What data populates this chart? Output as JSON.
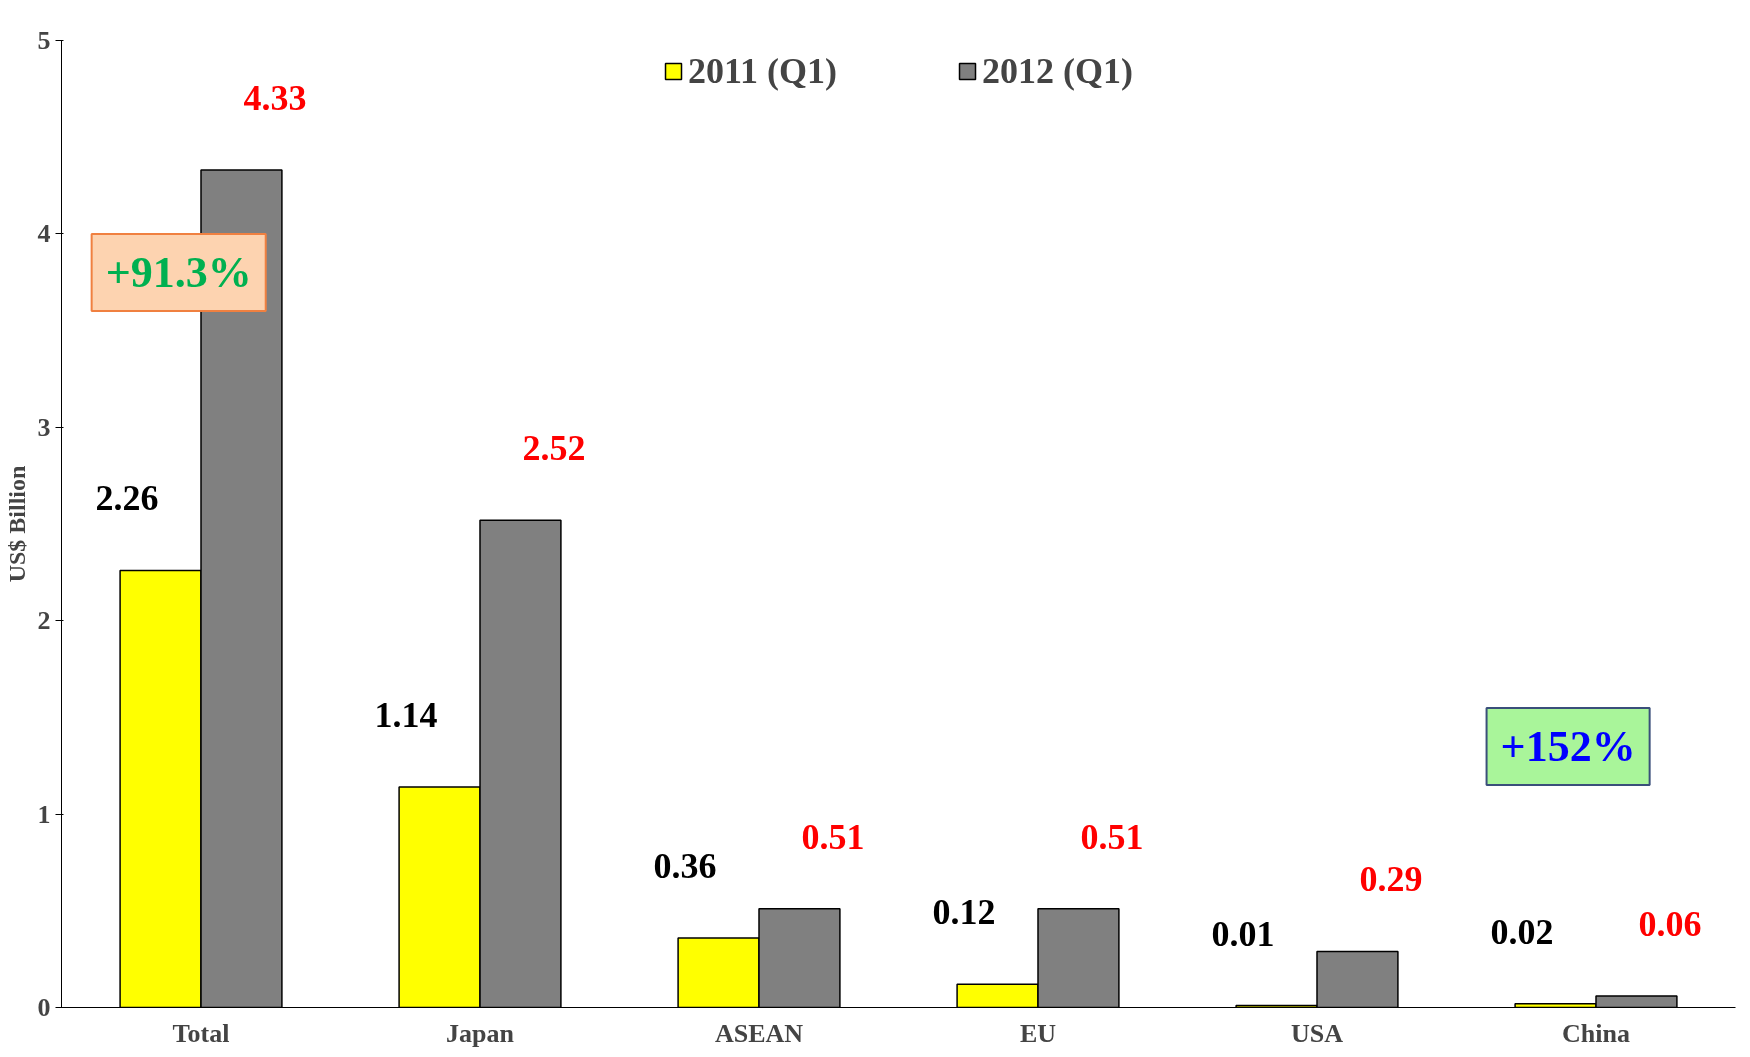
{
  "chart_data": {
    "type": "bar",
    "ylabel": "US$ Billion",
    "categories": [
      "Total",
      "Japan",
      "ASEAN",
      "EU",
      "USA",
      "China"
    ],
    "series": [
      {
        "name": "2011 (Q1)",
        "color": "#ffff00",
        "values": [
          2.26,
          1.14,
          0.36,
          0.12,
          0.01,
          0.02
        ],
        "value_labels": [
          "2.26",
          "1.14",
          "0.36",
          "0.12",
          "0.01",
          "0.02"
        ]
      },
      {
        "name": "2012 (Q1)",
        "color": "#808080",
        "values": [
          4.33,
          2.52,
          0.51,
          0.51,
          0.29,
          0.06
        ],
        "value_labels": [
          "4.33",
          "2.52",
          "0.51",
          "0.51",
          "0.29",
          "0.06"
        ]
      }
    ],
    "ylim": [
      0,
      5
    ],
    "yticks": [
      0,
      1,
      2,
      3,
      4,
      5
    ],
    "grid": false,
    "legend": "top",
    "annotations": [
      "+91.3%",
      "+152%"
    ]
  }
}
